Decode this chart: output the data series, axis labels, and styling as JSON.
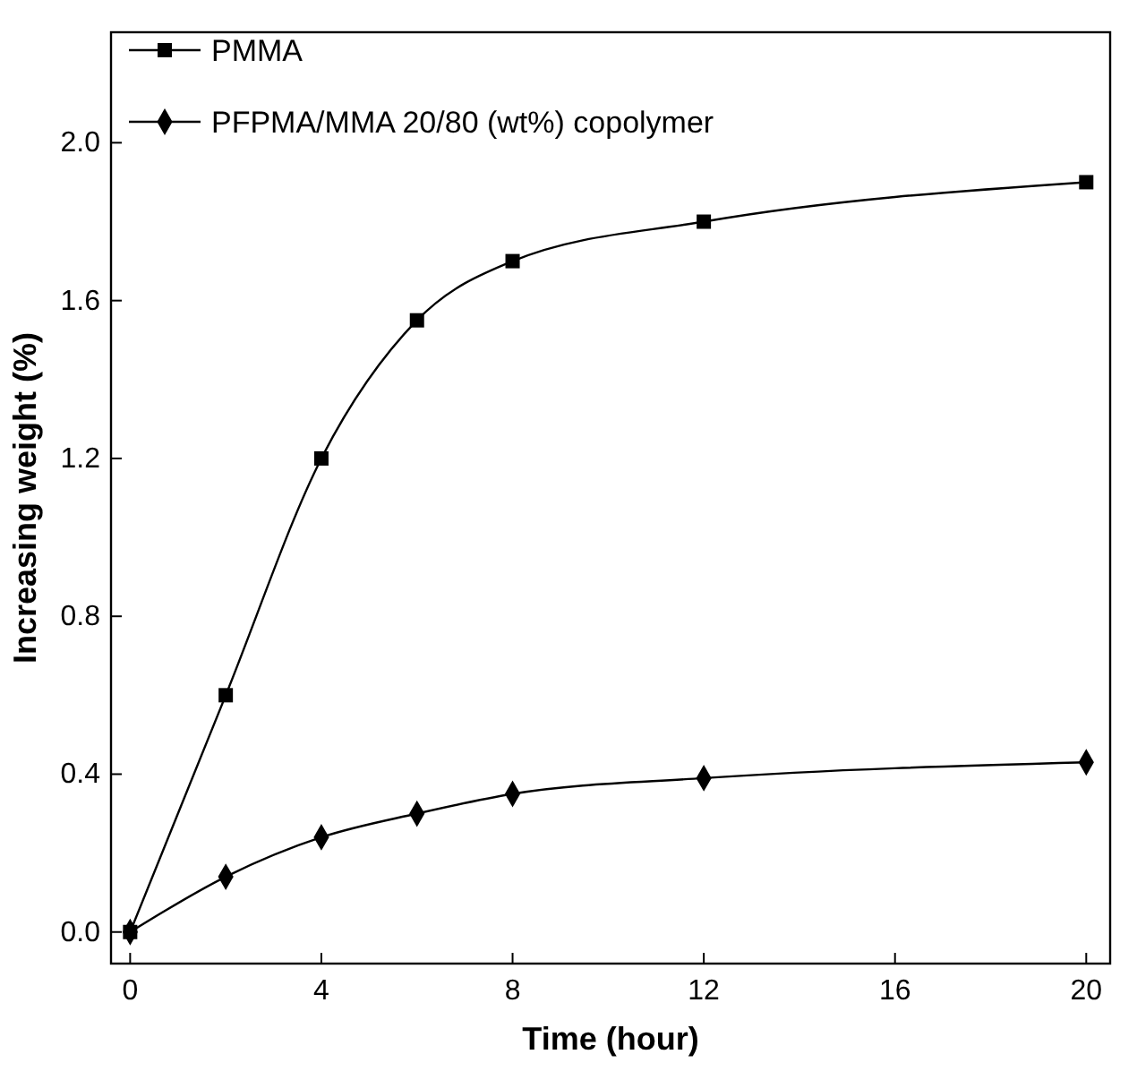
{
  "chart_data": {
    "type": "line",
    "xlabel": "Time (hour)",
    "ylabel": "Increasing weight (%)",
    "xlim": [
      -0.4,
      20.5
    ],
    "ylim": [
      -0.08,
      2.28
    ],
    "xticks": [
      0,
      4,
      8,
      12,
      16,
      20
    ],
    "yticks": [
      {
        "value": 0,
        "label": "0.0"
      },
      0.4,
      0.8,
      1.2,
      1.6,
      {
        "value": 2,
        "label": "2.0"
      }
    ],
    "x": [
      0,
      2,
      4,
      6,
      8,
      12,
      20
    ],
    "series": [
      {
        "name": "PMMA",
        "color": "#000000",
        "marker": "square",
        "values": [
          0,
          0.6,
          1.2,
          1.55,
          1.7,
          1.8,
          1.9
        ]
      },
      {
        "name": "PFPMA/MMA 20/80 (wt%) copolymer",
        "color": "#000000",
        "marker": "diamond",
        "values": [
          0,
          0.14,
          0.24,
          0.3,
          0.35,
          0.39,
          0.43
        ]
      }
    ],
    "line_style": "solid",
    "grid": false,
    "legend": "top left"
  }
}
